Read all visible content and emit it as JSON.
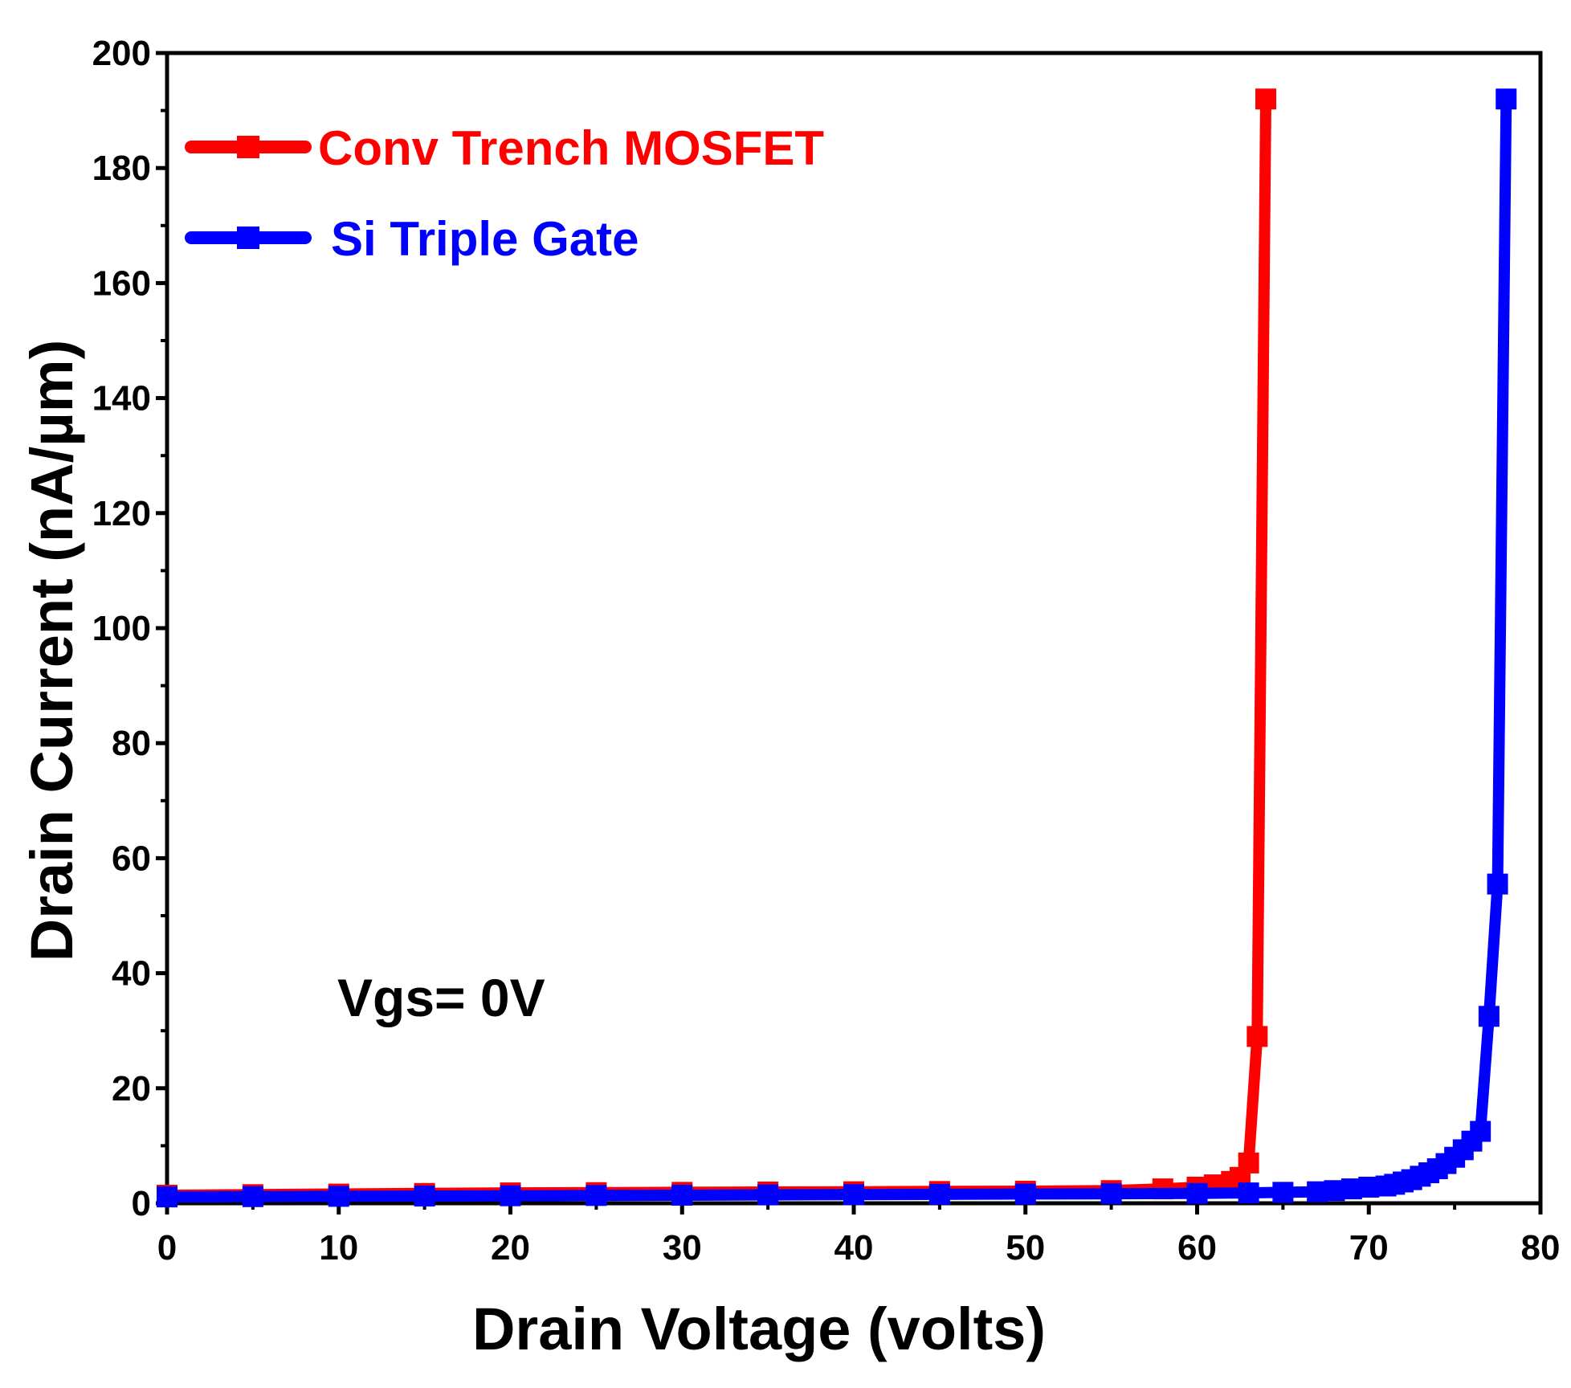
{
  "chart_data": {
    "type": "line",
    "title": "",
    "xlabel": "Drain Voltage (volts)",
    "ylabel": "Drain Current (nA/µm)",
    "xlim": [
      0,
      80
    ],
    "ylim": [
      0,
      200
    ],
    "xticks": [
      0,
      10,
      20,
      30,
      40,
      50,
      60,
      70,
      80
    ],
    "yticks": [
      0,
      20,
      40,
      60,
      80,
      100,
      120,
      140,
      160,
      180,
      200
    ],
    "grid": false,
    "legend_position": "top-left",
    "annotation": "Vgs= 0V",
    "series": [
      {
        "name": "Conv Trench MOSFET",
        "color": "#ff0000",
        "x": [
          0,
          5,
          10,
          15,
          20,
          25,
          30,
          35,
          40,
          45,
          50,
          55,
          58,
          60,
          61,
          62,
          62.5,
          63,
          63.5,
          64
        ],
        "y": [
          1.4,
          1.5,
          1.6,
          1.7,
          1.8,
          1.85,
          1.9,
          1.95,
          2.0,
          2.05,
          2.1,
          2.2,
          2.5,
          2.8,
          3.2,
          3.8,
          4.5,
          7.0,
          29.0,
          192.0
        ]
      },
      {
        "name": "Si Triple Gate",
        "color": "#0000ff",
        "x": [
          0,
          5,
          10,
          15,
          20,
          25,
          30,
          35,
          40,
          45,
          50,
          55,
          60,
          63,
          65,
          67,
          68,
          69,
          70,
          71,
          71.5,
          72,
          72.5,
          73,
          73.5,
          74,
          74.5,
          75,
          75.5,
          76,
          76.5,
          77,
          77.5,
          78
        ],
        "y": [
          1.1,
          1.15,
          1.2,
          1.25,
          1.3,
          1.35,
          1.4,
          1.45,
          1.5,
          1.55,
          1.6,
          1.65,
          1.7,
          1.8,
          1.9,
          2.0,
          2.2,
          2.5,
          2.8,
          3.0,
          3.3,
          3.7,
          4.1,
          4.7,
          5.3,
          6.0,
          6.9,
          8.0,
          9.3,
          10.8,
          12.5,
          32.5,
          55.5,
          192.0
        ]
      }
    ]
  }
}
